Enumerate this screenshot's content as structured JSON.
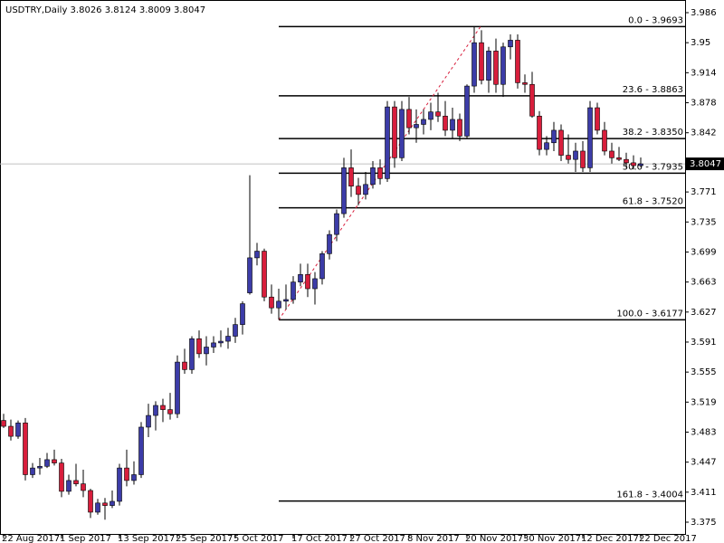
{
  "chart_data": {
    "type": "candlestick",
    "title": "USDTRY,Daily  3.8026 3.8124 3.8009 3.8047",
    "up_color": "#3c3ca8",
    "down_color": "#d81e3c",
    "ylim": [
      3.3609,
      4.0012
    ],
    "yticks": [
      3.986,
      3.95,
      3.914,
      3.878,
      3.842,
      3.771,
      3.735,
      3.699,
      3.663,
      3.627,
      3.591,
      3.555,
      3.519,
      3.483,
      3.447,
      3.411,
      3.375
    ],
    "current_price": {
      "value": 3.8047,
      "label": "3.8047"
    },
    "categories": [
      "22 Aug 2017",
      null,
      null,
      null,
      null,
      null,
      null,
      null,
      "1 Sep 2017",
      null,
      null,
      null,
      null,
      null,
      null,
      null,
      "13 Sep 2017",
      null,
      null,
      null,
      null,
      null,
      null,
      null,
      "25 Sep 2017",
      null,
      null,
      null,
      null,
      null,
      null,
      null,
      "5 Oct 2017",
      null,
      null,
      null,
      null,
      null,
      null,
      null,
      "17 Oct 2017",
      null,
      null,
      null,
      null,
      null,
      null,
      null,
      "27 Oct 2017",
      null,
      null,
      null,
      null,
      null,
      null,
      null,
      "8 Nov 2017",
      null,
      null,
      null,
      null,
      null,
      null,
      null,
      "20 Nov 2017",
      null,
      null,
      null,
      null,
      null,
      null,
      null,
      "30 Nov 2017",
      null,
      null,
      null,
      null,
      null,
      null,
      null,
      "12 Dec 2017",
      null,
      null,
      null,
      null,
      null,
      null,
      null,
      "22 Dec 2017"
    ],
    "open": [
      3.497,
      3.49,
      3.478,
      3.494,
      3.432,
      3.44,
      3.442,
      3.45,
      3.446,
      3.412,
      3.425,
      3.421,
      3.413,
      3.387,
      3.398,
      3.395,
      3.4,
      3.44,
      3.425,
      3.432,
      3.489,
      3.503,
      3.515,
      3.51,
      3.505,
      3.567,
      3.558,
      3.595,
      3.577,
      3.585,
      3.59,
      3.592,
      3.598,
      3.612,
      3.65,
      3.692,
      3.7,
      3.645,
      3.632,
      3.64,
      3.642,
      3.663,
      3.672,
      3.655,
      3.667,
      3.697,
      3.72,
      3.745,
      3.8,
      3.778,
      3.768,
      3.78,
      3.8,
      3.787,
      3.873,
      3.812,
      3.87,
      3.848,
      3.852,
      3.858,
      3.867,
      3.862,
      3.845,
      3.858,
      3.838,
      3.898,
      3.95,
      3.905,
      3.94,
      3.9,
      3.945,
      3.953,
      3.902,
      3.9,
      3.862,
      3.822,
      3.83,
      3.845,
      3.815,
      3.81,
      3.82,
      3.8,
      3.872,
      3.845,
      3.82,
      3.812,
      3.81,
      3.806,
      3.8026
    ],
    "high": [
      3.505,
      3.498,
      3.497,
      3.5,
      3.446,
      3.452,
      3.458,
      3.462,
      3.451,
      3.432,
      3.445,
      3.438,
      3.415,
      3.403,
      3.404,
      3.413,
      3.445,
      3.462,
      3.448,
      3.495,
      3.517,
      3.52,
      3.523,
      3.53,
      3.575,
      3.583,
      3.598,
      3.605,
      3.598,
      3.598,
      3.605,
      3.608,
      3.62,
      3.64,
      3.791,
      3.71,
      3.703,
      3.66,
      3.655,
      3.66,
      3.67,
      3.685,
      3.685,
      3.675,
      3.7,
      3.725,
      3.75,
      3.812,
      3.822,
      3.788,
      3.795,
      3.808,
      3.81,
      3.88,
      3.88,
      3.88,
      3.885,
      3.87,
      3.87,
      3.878,
      3.89,
      3.88,
      3.872,
      3.865,
      3.9,
      3.969,
      3.965,
      3.945,
      3.955,
      3.95,
      3.96,
      3.96,
      3.912,
      3.915,
      3.868,
      3.838,
      3.855,
      3.852,
      3.84,
      3.83,
      3.832,
      3.88,
      3.878,
      3.855,
      3.83,
      3.825,
      3.818,
      3.815,
      3.8124
    ],
    "low": [
      3.488,
      3.473,
      3.475,
      3.425,
      3.428,
      3.432,
      3.44,
      3.443,
      3.405,
      3.408,
      3.418,
      3.405,
      3.38,
      3.384,
      3.378,
      3.392,
      3.395,
      3.418,
      3.42,
      3.428,
      3.477,
      3.485,
      3.495,
      3.498,
      3.5,
      3.553,
      3.553,
      3.572,
      3.563,
      3.578,
      3.585,
      3.583,
      3.59,
      3.6,
      3.648,
      3.683,
      3.64,
      3.625,
      3.618,
      3.63,
      3.637,
      3.658,
      3.645,
      3.636,
      3.66,
      3.69,
      3.712,
      3.74,
      3.765,
      3.755,
      3.762,
      3.775,
      3.78,
      3.783,
      3.8,
      3.808,
      3.84,
      3.83,
      3.84,
      3.845,
      3.855,
      3.838,
      3.835,
      3.832,
      3.835,
      3.89,
      3.9,
      3.89,
      3.89,
      3.885,
      3.93,
      3.895,
      3.89,
      3.86,
      3.815,
      3.815,
      3.82,
      3.808,
      3.805,
      3.795,
      3.795,
      3.795,
      3.84,
      3.815,
      3.805,
      3.808,
      3.8,
      3.798,
      3.8009
    ],
    "close": [
      3.49,
      3.478,
      3.494,
      3.432,
      3.44,
      3.442,
      3.45,
      3.446,
      3.412,
      3.425,
      3.421,
      3.413,
      3.387,
      3.398,
      3.395,
      3.4,
      3.44,
      3.425,
      3.432,
      3.489,
      3.503,
      3.515,
      3.51,
      3.505,
      3.567,
      3.558,
      3.595,
      3.577,
      3.585,
      3.59,
      3.592,
      3.598,
      3.612,
      3.637,
      3.692,
      3.7,
      3.645,
      3.632,
      3.64,
      3.642,
      3.663,
      3.672,
      3.655,
      3.667,
      3.697,
      3.72,
      3.745,
      3.8,
      3.778,
      3.768,
      3.78,
      3.8,
      3.787,
      3.873,
      3.812,
      3.87,
      3.848,
      3.852,
      3.858,
      3.867,
      3.862,
      3.845,
      3.858,
      3.838,
      3.898,
      3.95,
      3.905,
      3.94,
      3.9,
      3.945,
      3.953,
      3.902,
      3.9,
      3.862,
      3.822,
      3.83,
      3.845,
      3.815,
      3.81,
      3.82,
      3.8,
      3.872,
      3.845,
      3.82,
      3.812,
      3.81,
      3.806,
      3.8026,
      3.8047
    ],
    "fib_levels": [
      {
        "label": "0.0 - 3.9693",
        "value": 3.9693
      },
      {
        "label": "23.6 - 3.8863",
        "value": 3.8863
      },
      {
        "label": "38.2 - 3.8350",
        "value": 3.835
      },
      {
        "label": "50.0 - 3.7935",
        "value": 3.7935
      },
      {
        "label": "61.8 - 3.7520",
        "value": 3.752
      },
      {
        "label": "100.0 - 3.6177",
        "value": 3.6177
      },
      {
        "label": "161.8 - 3.4004",
        "value": 3.4004
      }
    ]
  }
}
